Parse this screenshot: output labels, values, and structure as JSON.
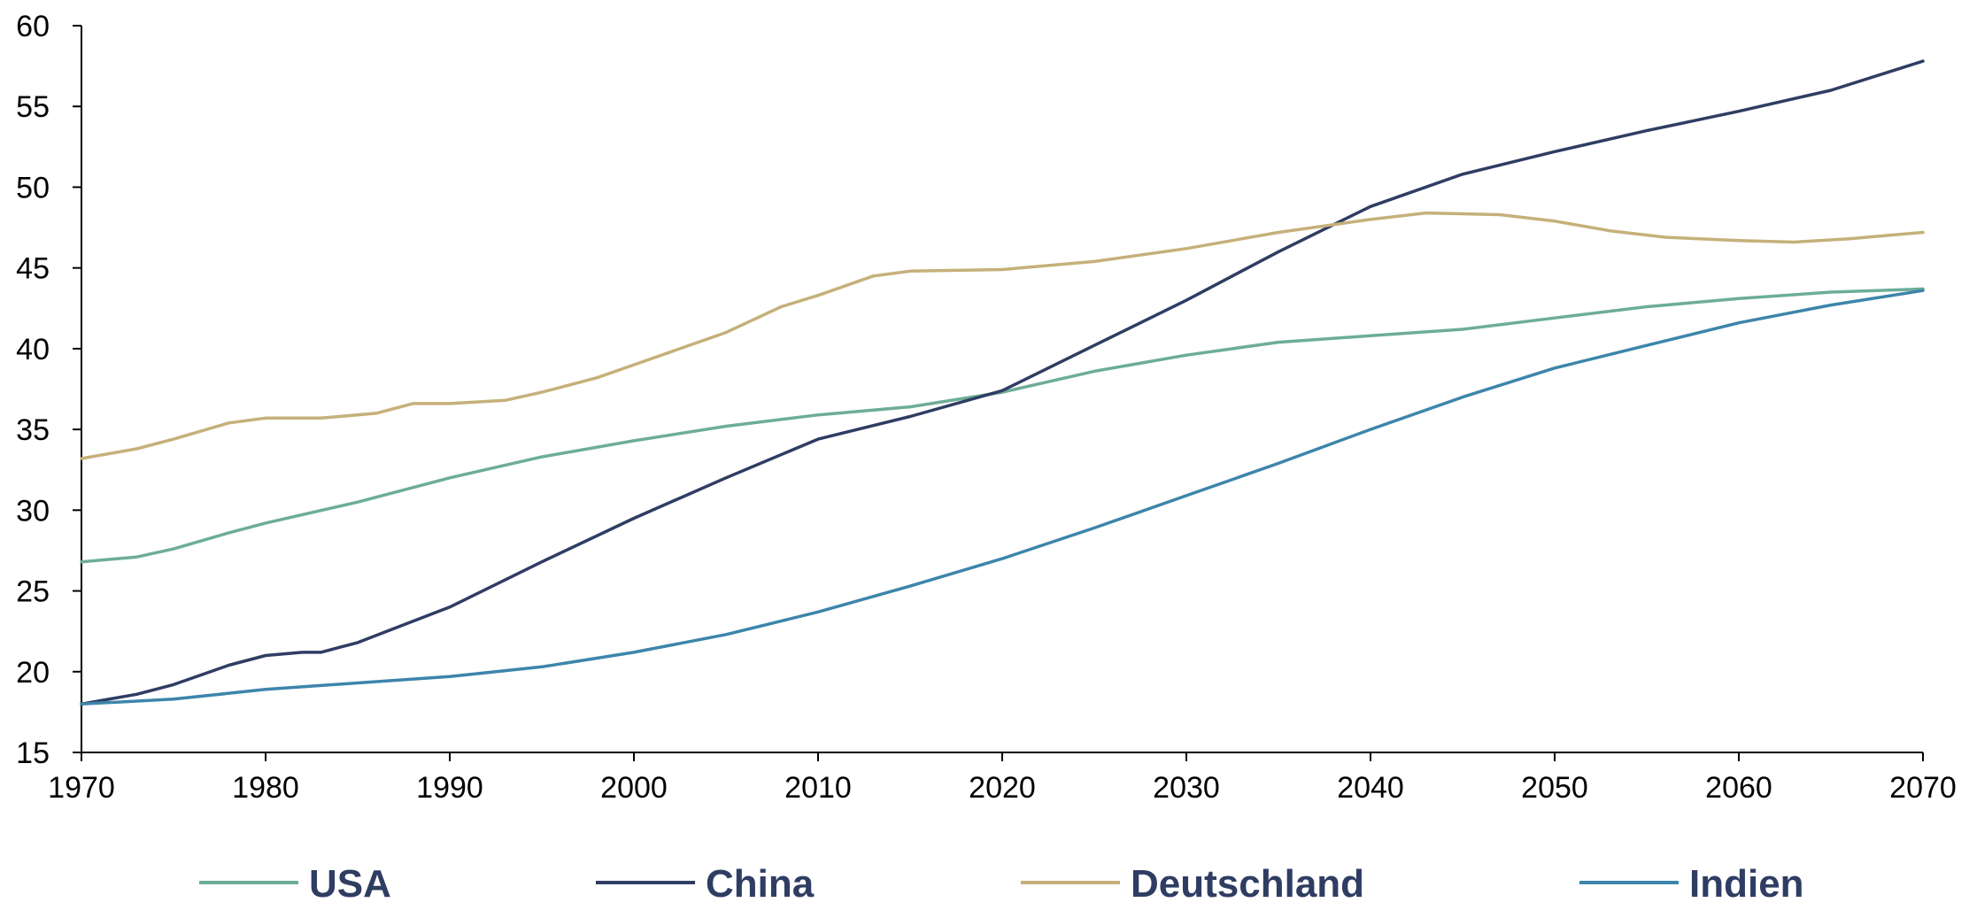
{
  "chart_data": {
    "type": "line",
    "title": "",
    "xlabel": "",
    "ylabel": "",
    "xlim": [
      1970,
      2070
    ],
    "ylim": [
      15,
      60
    ],
    "x_ticks": [
      1970,
      1980,
      1990,
      2000,
      2010,
      2020,
      2030,
      2040,
      2050,
      2060,
      2070
    ],
    "y_ticks": [
      15,
      20,
      25,
      30,
      35,
      40,
      45,
      50,
      55,
      60
    ],
    "grid": false,
    "legend_position": "bottom",
    "series": [
      {
        "name": "USA",
        "color": "#6dad98",
        "points": [
          [
            1970,
            26.8
          ],
          [
            1973,
            27.1
          ],
          [
            1975,
            27.6
          ],
          [
            1978,
            28.6
          ],
          [
            1980,
            29.2
          ],
          [
            1985,
            30.5
          ],
          [
            1990,
            32.0
          ],
          [
            1995,
            33.3
          ],
          [
            2000,
            34.3
          ],
          [
            2005,
            35.2
          ],
          [
            2010,
            35.9
          ],
          [
            2015,
            36.4
          ],
          [
            2020,
            37.3
          ],
          [
            2025,
            38.6
          ],
          [
            2030,
            39.6
          ],
          [
            2035,
            40.4
          ],
          [
            2040,
            40.8
          ],
          [
            2045,
            41.2
          ],
          [
            2050,
            41.9
          ],
          [
            2055,
            42.6
          ],
          [
            2060,
            43.1
          ],
          [
            2065,
            43.5
          ],
          [
            2070,
            43.7
          ]
        ]
      },
      {
        "name": "China",
        "color": "#2f3d63",
        "points": [
          [
            1970,
            18.0
          ],
          [
            1973,
            18.6
          ],
          [
            1975,
            19.2
          ],
          [
            1978,
            20.4
          ],
          [
            1980,
            21.0
          ],
          [
            1982,
            21.2
          ],
          [
            1983,
            21.2
          ],
          [
            1985,
            21.8
          ],
          [
            1990,
            24.0
          ],
          [
            1995,
            26.8
          ],
          [
            2000,
            29.5
          ],
          [
            2005,
            32.0
          ],
          [
            2010,
            34.4
          ],
          [
            2015,
            35.8
          ],
          [
            2020,
            37.4
          ],
          [
            2025,
            40.2
          ],
          [
            2030,
            43.0
          ],
          [
            2035,
            46.0
          ],
          [
            2040,
            48.8
          ],
          [
            2045,
            50.8
          ],
          [
            2050,
            52.2
          ],
          [
            2055,
            53.5
          ],
          [
            2060,
            54.7
          ],
          [
            2065,
            56.0
          ],
          [
            2070,
            57.8
          ]
        ]
      },
      {
        "name": "Deutschland",
        "color": "#c6b07a",
        "points": [
          [
            1970,
            33.2
          ],
          [
            1973,
            33.8
          ],
          [
            1975,
            34.4
          ],
          [
            1978,
            35.4
          ],
          [
            1980,
            35.7
          ],
          [
            1983,
            35.7
          ],
          [
            1986,
            36.0
          ],
          [
            1988,
            36.6
          ],
          [
            1990,
            36.6
          ],
          [
            1993,
            36.8
          ],
          [
            1995,
            37.3
          ],
          [
            1998,
            38.2
          ],
          [
            2000,
            39.0
          ],
          [
            2005,
            41.0
          ],
          [
            2008,
            42.6
          ],
          [
            2010,
            43.3
          ],
          [
            2013,
            44.5
          ],
          [
            2015,
            44.8
          ],
          [
            2020,
            44.9
          ],
          [
            2025,
            45.4
          ],
          [
            2030,
            46.2
          ],
          [
            2035,
            47.2
          ],
          [
            2040,
            48.0
          ],
          [
            2043,
            48.4
          ],
          [
            2047,
            48.3
          ],
          [
            2050,
            47.9
          ],
          [
            2053,
            47.3
          ],
          [
            2056,
            46.9
          ],
          [
            2060,
            46.7
          ],
          [
            2063,
            46.6
          ],
          [
            2066,
            46.8
          ],
          [
            2070,
            47.2
          ]
        ]
      },
      {
        "name": "Indien",
        "color": "#3d85ab",
        "points": [
          [
            1970,
            18.0
          ],
          [
            1975,
            18.3
          ],
          [
            1980,
            18.9
          ],
          [
            1985,
            19.3
          ],
          [
            1990,
            19.7
          ],
          [
            1995,
            20.3
          ],
          [
            2000,
            21.2
          ],
          [
            2005,
            22.3
          ],
          [
            2010,
            23.7
          ],
          [
            2015,
            25.3
          ],
          [
            2020,
            27.0
          ],
          [
            2025,
            28.9
          ],
          [
            2030,
            30.9
          ],
          [
            2035,
            32.9
          ],
          [
            2040,
            35.0
          ],
          [
            2045,
            37.0
          ],
          [
            2050,
            38.8
          ],
          [
            2055,
            40.2
          ],
          [
            2060,
            41.6
          ],
          [
            2065,
            42.7
          ],
          [
            2070,
            43.6
          ]
        ]
      }
    ]
  }
}
